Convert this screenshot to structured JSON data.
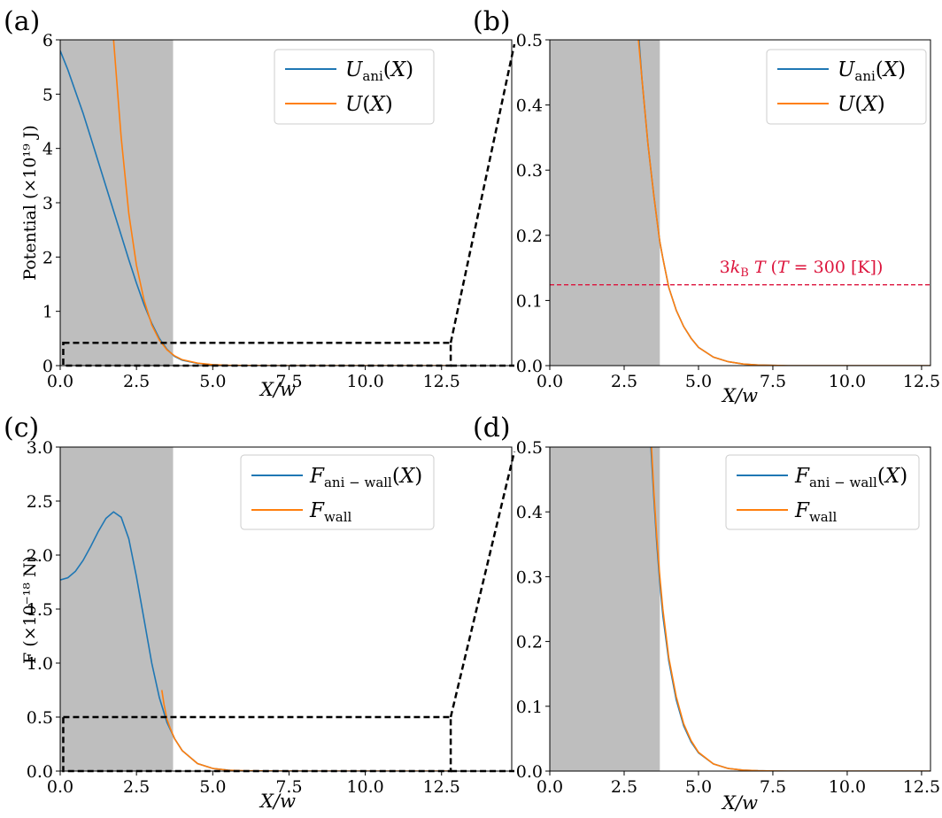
{
  "chart_data": [
    {
      "type": "line",
      "panel_label": "(a)",
      "xlabel": "X/w",
      "ylabel": "Potential (×10¹⁹ J)",
      "xlim": [
        0,
        14.8
      ],
      "ylim": [
        0,
        6
      ],
      "xticks": [
        0,
        2.5,
        5,
        7.5,
        10,
        12.5
      ],
      "xtick_labels": [
        "0.0",
        "2.5",
        "5.0",
        "7.5",
        "10.0",
        "12.5"
      ],
      "yticks": [
        0,
        1,
        2,
        3,
        4,
        5,
        6
      ],
      "ytick_labels": [
        "0",
        "1",
        "2",
        "3",
        "4",
        "5",
        "6"
      ],
      "shaded_region": [
        0,
        3.7
      ],
      "zoom_box": {
        "x": [
          0.1,
          12.8
        ],
        "y": [
          0,
          0.42
        ]
      },
      "legend": {
        "location": "top-right",
        "entries": [
          "U_ani(X)",
          "U(X)"
        ]
      },
      "series": [
        {
          "name": "U_ani(X)",
          "color": "#1f77b4",
          "x": [
            0,
            0.25,
            0.5,
            0.75,
            1,
            1.25,
            1.5,
            1.75,
            2,
            2.25,
            2.5,
            2.75,
            3,
            3.25,
            3.5,
            3.75,
            4,
            4.5,
            5,
            5.5,
            6
          ],
          "y": [
            5.8,
            5.45,
            5.05,
            4.65,
            4.2,
            3.75,
            3.3,
            2.85,
            2.4,
            1.95,
            1.52,
            1.12,
            0.78,
            0.5,
            0.3,
            0.17,
            0.1,
            0.04,
            0.015,
            0.005,
            0.002
          ]
        },
        {
          "name": "U(X)",
          "color": "#ff7f0e",
          "x": [
            1.75,
            1.9,
            2.0,
            2.25,
            2.5,
            2.75,
            3.0,
            3.25,
            3.5,
            3.75,
            4.0,
            4.5,
            5.0,
            5.5,
            6.0,
            6.5,
            7,
            8,
            9,
            10,
            11,
            12,
            12.8
          ],
          "y": [
            6.0,
            4.9,
            4.2,
            2.8,
            1.85,
            1.2,
            0.75,
            0.47,
            0.29,
            0.18,
            0.11,
            0.045,
            0.018,
            0.007,
            0.003,
            0.001,
            0.0005,
            0,
            0,
            0,
            0,
            0,
            0
          ]
        }
      ]
    },
    {
      "type": "line",
      "panel_label": "(b)",
      "xlabel": "X/w",
      "ylabel": "",
      "xlim": [
        0,
        12.8
      ],
      "ylim": [
        0,
        0.5
      ],
      "xticks": [
        0,
        2.5,
        5,
        7.5,
        10,
        12.5
      ],
      "xtick_labels": [
        "0.0",
        "2.5",
        "5.0",
        "7.5",
        "10.0",
        "12.5"
      ],
      "yticks": [
        0,
        0.1,
        0.2,
        0.3,
        0.4,
        0.5
      ],
      "ytick_labels": [
        "0.0",
        "0.1",
        "0.2",
        "0.3",
        "0.4",
        "0.5"
      ],
      "shaded_region": [
        0,
        3.7
      ],
      "hline": {
        "y": 0.124,
        "color": "#dc143c",
        "label": "3k_B T (T = 300 [K])"
      },
      "legend": {
        "location": "top-right",
        "entries": [
          "U_ani(X)",
          "U(X)"
        ]
      },
      "series": [
        {
          "name": "U_ani(X)",
          "color": "#1f77b4",
          "x": [
            3.0,
            3.1,
            3.2,
            3.3,
            3.4,
            3.5,
            3.6,
            3.7,
            3.8,
            4.0,
            4.25,
            4.5,
            4.75,
            5.0,
            5.5,
            6.0,
            6.5,
            7.0,
            7.5,
            8,
            9,
            10,
            11,
            12,
            12.8
          ],
          "y": [
            0.5,
            0.44,
            0.39,
            0.34,
            0.3,
            0.26,
            0.225,
            0.19,
            0.165,
            0.12,
            0.085,
            0.06,
            0.042,
            0.028,
            0.013,
            0.006,
            0.0025,
            0.001,
            0.0004,
            0,
            0,
            0,
            0,
            0,
            0
          ]
        },
        {
          "name": "U(X)",
          "color": "#ff7f0e",
          "x": [
            2.98,
            3.1,
            3.2,
            3.3,
            3.4,
            3.5,
            3.6,
            3.7,
            3.8,
            4.0,
            4.25,
            4.5,
            4.75,
            5.0,
            5.5,
            6.0,
            6.5,
            7.0,
            7.5,
            8,
            9,
            10,
            11,
            12,
            12.8
          ],
          "y": [
            0.5,
            0.44,
            0.39,
            0.34,
            0.3,
            0.26,
            0.225,
            0.19,
            0.165,
            0.12,
            0.085,
            0.06,
            0.042,
            0.028,
            0.013,
            0.006,
            0.0025,
            0.001,
            0.0004,
            0,
            0,
            0,
            0,
            0,
            0
          ]
        }
      ]
    },
    {
      "type": "line",
      "panel_label": "(c)",
      "xlabel": "X/w",
      "ylabel": "F (×10⁻¹⁸ N)",
      "xlim": [
        0,
        14.8
      ],
      "ylim": [
        0,
        3.0
      ],
      "xticks": [
        0,
        2.5,
        5,
        7.5,
        10,
        12.5
      ],
      "xtick_labels": [
        "0.0",
        "2.5",
        "5.0",
        "7.5",
        "10.0",
        "12.5"
      ],
      "yticks": [
        0,
        0.5,
        1.0,
        1.5,
        2.0,
        2.5,
        3.0
      ],
      "ytick_labels": [
        "0.0",
        "0.5",
        "1.0",
        "1.5",
        "2.0",
        "2.5",
        "3.0"
      ],
      "shaded_region": [
        0,
        3.7
      ],
      "zoom_box": {
        "x": [
          0.1,
          12.8
        ],
        "y": [
          0,
          0.5
        ]
      },
      "legend": {
        "location": "top-right",
        "entries": [
          "F_ani−wall(X)",
          "F_wall"
        ]
      },
      "series": [
        {
          "name": "F_ani−wall(X)",
          "color": "#1f77b4",
          "x": [
            0,
            0.25,
            0.5,
            0.75,
            1.0,
            1.25,
            1.5,
            1.75,
            2.0,
            2.25,
            2.5,
            2.75,
            3.0,
            3.25,
            3.5,
            3.75,
            4.0,
            4.5,
            5.0,
            5.5,
            6.0
          ],
          "y": [
            1.77,
            1.79,
            1.85,
            1.95,
            2.08,
            2.22,
            2.34,
            2.4,
            2.35,
            2.15,
            1.8,
            1.4,
            1.0,
            0.68,
            0.45,
            0.3,
            0.19,
            0.07,
            0.025,
            0.008,
            0.002
          ]
        },
        {
          "name": "F_wall",
          "color": "#ff7f0e",
          "x": [
            3.33,
            3.4,
            3.5,
            3.6,
            3.75,
            4.0,
            4.5,
            5.0,
            5.5,
            6.0,
            7.0,
            8,
            10,
            12.8
          ],
          "y": [
            0.75,
            0.62,
            0.48,
            0.4,
            0.3,
            0.19,
            0.07,
            0.025,
            0.008,
            0.003,
            0.0005,
            0,
            0,
            0
          ]
        }
      ]
    },
    {
      "type": "line",
      "panel_label": "(d)",
      "xlabel": "X/w",
      "ylabel": "",
      "xlim": [
        0,
        12.8
      ],
      "ylim": [
        0,
        0.5
      ],
      "xticks": [
        0,
        2.5,
        5,
        7.5,
        10,
        12.5
      ],
      "xtick_labels": [
        "0.0",
        "2.5",
        "5.0",
        "7.5",
        "10.0",
        "12.5"
      ],
      "yticks": [
        0,
        0.1,
        0.2,
        0.3,
        0.4,
        0.5
      ],
      "ytick_labels": [
        "0.0",
        "0.1",
        "0.2",
        "0.3",
        "0.4",
        "0.5"
      ],
      "shaded_region": [
        0,
        3.7
      ],
      "legend": {
        "location": "top-right",
        "entries": [
          "F_ani−wall(X)",
          "F_wall"
        ]
      },
      "series": [
        {
          "name": "F_ani−wall(X)",
          "color": "#1f77b4",
          "x": [
            3.4,
            3.5,
            3.6,
            3.7,
            3.8,
            4.0,
            4.25,
            4.5,
            4.75,
            5.0,
            5.5,
            6.0,
            6.5,
            7.0,
            7.5,
            8,
            9,
            10,
            11,
            12,
            12.8
          ],
          "y": [
            0.5,
            0.42,
            0.35,
            0.29,
            0.24,
            0.17,
            0.11,
            0.07,
            0.045,
            0.028,
            0.011,
            0.004,
            0.0015,
            0.0006,
            0.0002,
            0,
            0,
            0,
            0,
            0,
            0
          ]
        },
        {
          "name": "F_wall",
          "color": "#ff7f0e",
          "x": [
            3.42,
            3.5,
            3.6,
            3.7,
            3.8,
            4.0,
            4.25,
            4.5,
            4.75,
            5.0,
            5.5,
            6.0,
            6.5,
            7.0,
            7.5,
            8,
            9,
            10,
            11,
            12,
            12.8
          ],
          "y": [
            0.5,
            0.43,
            0.36,
            0.3,
            0.25,
            0.175,
            0.115,
            0.073,
            0.047,
            0.029,
            0.011,
            0.004,
            0.0015,
            0.0006,
            0.0002,
            0,
            0,
            0,
            0,
            0,
            0
          ]
        }
      ]
    }
  ]
}
